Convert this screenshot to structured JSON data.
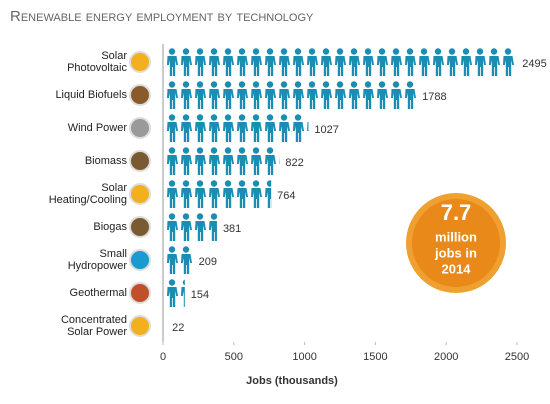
{
  "chart_data": {
    "type": "bar",
    "orientation": "horizontal",
    "title": "Renewable energy employment by technology",
    "categories": [
      "Solar Photovoltaic",
      "Liquid Biofuels",
      "Wind Power",
      "Biomass",
      "Solar Heating/Cooling",
      "Biogas",
      "Small Hydropower",
      "Geothermal",
      "Concentrated Solar Power"
    ],
    "values": [
      2495,
      1788,
      1027,
      822,
      764,
      381,
      209,
      154,
      22
    ],
    "color": "#1b8db3",
    "xlim": [
      0,
      2500
    ],
    "xticks": [
      0,
      500,
      1000,
      1500,
      2000,
      2500
    ],
    "xlabel": "Jobs (thousands)",
    "annotation": [
      "7.7",
      "million",
      "jobs in",
      "2014"
    ]
  }
}
